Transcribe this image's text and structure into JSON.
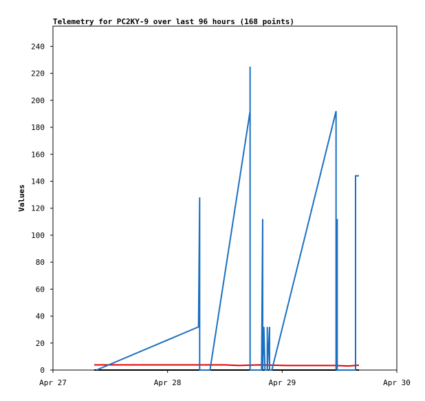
{
  "chart_data": {
    "type": "line",
    "title": "Telemetry for PC2KY-9 over last 96 hours (168 points)",
    "y_label": "Values",
    "xlim": [
      0,
      3
    ],
    "xticks": [
      {
        "value": 0,
        "label": "Apr 27"
      },
      {
        "value": 1,
        "label": "Apr 28"
      },
      {
        "value": 2,
        "label": "Apr 29"
      },
      {
        "value": 3,
        "label": "Apr 30"
      }
    ],
    "ylim": [
      0,
      255
    ],
    "yticks": [
      0,
      20,
      40,
      60,
      80,
      100,
      120,
      140,
      160,
      180,
      200,
      220,
      240
    ],
    "series": [
      {
        "color": "#000000",
        "x": [
          0.36,
          2.67
        ],
        "values": [
          0,
          0
        ]
      },
      {
        "color": "#e00000",
        "x": [
          0.36,
          1.5,
          1.62,
          1.8,
          2.04,
          2.46,
          2.58,
          2.67
        ],
        "values": [
          3.8,
          3.8,
          3.4,
          3.8,
          3.4,
          3.4,
          3,
          3.6
        ]
      },
      {
        "color": "#1a6fc0",
        "x": [
          0.38,
          1.27,
          1.28,
          1.28,
          1.37,
          1.72,
          1.72,
          1.72,
          1.82,
          1.83,
          1.83,
          1.84,
          1.85,
          1.87,
          1.87,
          1.87,
          1.89,
          1.89,
          1.91,
          2.47,
          2.47,
          2.48,
          2.48,
          2.64,
          2.64,
          2.67
        ],
        "values": [
          0,
          32,
          128,
          0,
          0,
          192,
          225,
          0,
          0,
          112,
          0,
          32,
          0,
          0,
          32,
          0,
          32,
          0,
          0,
          192,
          0,
          112,
          0,
          0,
          144,
          144
        ]
      }
    ]
  }
}
